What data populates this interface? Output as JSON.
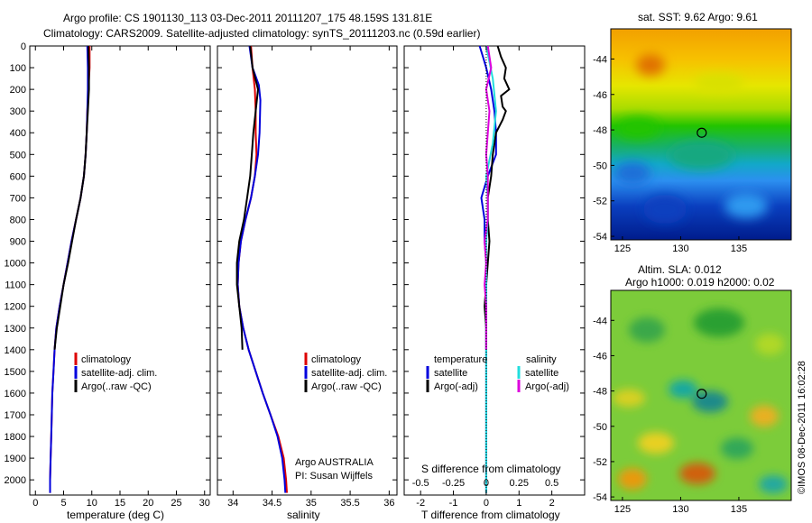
{
  "header": {
    "line1": "Argo profile: CS 1901130_113 03-Dec-2011 20111207_175 48.159S 131.81E",
    "line2": "Climatology: CARS2009. Satellite-adjusted climatology: synTS_20111203.nc (0.59d earlier)"
  },
  "colors": {
    "climatology": "#dd0000",
    "satellite_temp": "#0000dd",
    "argo_temp": "#000000",
    "satellite_sal": "#22dddd",
    "argo_sal": "#dd00dd"
  },
  "chart_data": [
    {
      "id": "temperature",
      "type": "line",
      "xlabel": "temperature (deg C)",
      "xlim": [
        -1,
        31
      ],
      "xticks": [
        "0",
        "5",
        "10",
        "15",
        "20",
        "25",
        "30"
      ],
      "ylim": [
        0,
        2070
      ],
      "yticks": [
        "0",
        "100",
        "200",
        "300",
        "400",
        "500",
        "600",
        "700",
        "800",
        "900",
        "1000",
        "1100",
        "1200",
        "1300",
        "1400",
        "1500",
        "1600",
        "1700",
        "1800",
        "1900",
        "2000"
      ],
      "legend": [
        "climatology",
        "satellite-adj. clim.",
        "Argo(..raw -QC)"
      ],
      "series": [
        {
          "name": "climatology",
          "color": "#dd0000",
          "points": [
            [
              9.6,
              0
            ],
            [
              9.6,
              100
            ],
            [
              9.4,
              200
            ],
            [
              9.2,
              300
            ],
            [
              9.1,
              400
            ],
            [
              8.9,
              500
            ],
            [
              8.6,
              600
            ],
            [
              8.0,
              700
            ],
            [
              7.2,
              800
            ],
            [
              6.4,
              900
            ],
            [
              5.7,
              1000
            ],
            [
              5.0,
              1100
            ],
            [
              4.3,
              1200
            ],
            [
              3.7,
              1300
            ],
            [
              3.4,
              1400
            ],
            [
              3.2,
              1500
            ],
            [
              3.0,
              1600
            ],
            [
              2.9,
              1700
            ],
            [
              2.8,
              1800
            ],
            [
              2.7,
              1900
            ],
            [
              2.6,
              2000
            ],
            [
              2.6,
              2060
            ]
          ]
        },
        {
          "name": "satellite-adj. clim.",
          "color": "#0000dd",
          "points": [
            [
              9.2,
              0
            ],
            [
              9.3,
              100
            ],
            [
              9.3,
              200
            ],
            [
              9.2,
              300
            ],
            [
              9.1,
              400
            ],
            [
              8.9,
              500
            ],
            [
              8.6,
              600
            ],
            [
              8.0,
              700
            ],
            [
              7.2,
              800
            ],
            [
              6.4,
              900
            ],
            [
              5.7,
              1000
            ],
            [
              5.0,
              1100
            ],
            [
              4.3,
              1200
            ],
            [
              3.7,
              1300
            ],
            [
              3.4,
              1400
            ],
            [
              3.2,
              1500
            ],
            [
              3.0,
              1600
            ],
            [
              2.9,
              1700
            ],
            [
              2.8,
              1800
            ],
            [
              2.7,
              1900
            ],
            [
              2.6,
              2000
            ],
            [
              2.6,
              2060
            ]
          ]
        },
        {
          "name": "Argo(..raw -QC)",
          "color": "#000000",
          "points": [
            [
              9.4,
              0
            ],
            [
              9.5,
              100
            ],
            [
              9.5,
              200
            ],
            [
              9.3,
              300
            ],
            [
              9.1,
              400
            ],
            [
              8.9,
              500
            ],
            [
              8.6,
              600
            ],
            [
              8.0,
              700
            ],
            [
              7.2,
              800
            ],
            [
              6.5,
              900
            ],
            [
              5.8,
              1000
            ],
            [
              5.0,
              1100
            ],
            [
              4.4,
              1200
            ],
            [
              3.8,
              1300
            ],
            [
              3.4,
              1400
            ]
          ]
        }
      ]
    },
    {
      "id": "salinity",
      "type": "line",
      "xlabel": "salinity",
      "xlim": [
        33.8,
        36.1
      ],
      "xticks": [
        "34",
        "34.5",
        "35",
        "35.5",
        "36"
      ],
      "ylim": [
        0,
        2070
      ],
      "legend": [
        "climatology",
        "satellite-adj. clim.",
        "Argo(..raw -QC)"
      ],
      "annotation": [
        "Argo AUSTRALIA",
        "PI: Susan Wijffels"
      ],
      "series": [
        {
          "name": "climatology",
          "color": "#dd0000",
          "points": [
            [
              34.23,
              0
            ],
            [
              34.25,
              100
            ],
            [
              34.28,
              200
            ],
            [
              34.29,
              300
            ],
            [
              34.29,
              400
            ],
            [
              34.3,
              500
            ],
            [
              34.28,
              600
            ],
            [
              34.23,
              700
            ],
            [
              34.16,
              800
            ],
            [
              34.1,
              900
            ],
            [
              34.07,
              1000
            ],
            [
              34.06,
              1100
            ],
            [
              34.08,
              1200
            ],
            [
              34.13,
              1300
            ],
            [
              34.2,
              1400
            ],
            [
              34.29,
              1500
            ],
            [
              34.38,
              1600
            ],
            [
              34.48,
              1700
            ],
            [
              34.58,
              1800
            ],
            [
              34.65,
              1900
            ],
            [
              34.68,
              2000
            ],
            [
              34.69,
              2060
            ]
          ]
        },
        {
          "name": "satellite-adj. clim.",
          "color": "#0000dd",
          "points": [
            [
              34.21,
              0
            ],
            [
              34.25,
              100
            ],
            [
              34.33,
              180
            ],
            [
              34.35,
              250
            ],
            [
              34.34,
              400
            ],
            [
              34.32,
              500
            ],
            [
              34.28,
              600
            ],
            [
              34.23,
              700
            ],
            [
              34.16,
              800
            ],
            [
              34.1,
              900
            ],
            [
              34.07,
              1000
            ],
            [
              34.06,
              1100
            ],
            [
              34.08,
              1200
            ],
            [
              34.13,
              1300
            ],
            [
              34.2,
              1400
            ],
            [
              34.29,
              1500
            ],
            [
              34.38,
              1600
            ],
            [
              34.48,
              1700
            ],
            [
              34.57,
              1800
            ],
            [
              34.63,
              1900
            ],
            [
              34.66,
              2000
            ],
            [
              34.67,
              2060
            ]
          ]
        },
        {
          "name": "Argo(..raw -QC)",
          "color": "#000000",
          "points": [
            [
              34.22,
              0
            ],
            [
              34.25,
              100
            ],
            [
              34.32,
              200
            ],
            [
              34.29,
              300
            ],
            [
              34.26,
              400
            ],
            [
              34.24,
              500
            ],
            [
              34.22,
              600
            ],
            [
              34.18,
              700
            ],
            [
              34.14,
              800
            ],
            [
              34.08,
              900
            ],
            [
              34.05,
              1000
            ],
            [
              34.05,
              1100
            ],
            [
              34.08,
              1200
            ],
            [
              34.11,
              1300
            ],
            [
              34.12,
              1400
            ]
          ]
        }
      ]
    },
    {
      "id": "difference",
      "type": "line",
      "xlabel": "T difference from climatology",
      "xlabel_top": "S difference from climatology",
      "xlim": [
        -2.5,
        3.0
      ],
      "xticks": [
        "-2",
        "-1",
        "0",
        "1",
        "2"
      ],
      "xticks_top": [
        "-0.5",
        "-0.25",
        "0",
        "0.25",
        "0.5"
      ],
      "ylim": [
        0,
        2070
      ],
      "legend_headers": [
        "temperature",
        "salinity"
      ],
      "legend_temperature": [
        "satellite",
        "Argo(-adj)"
      ],
      "legend_salinity": [
        "satellite",
        "Argo(-adj)"
      ],
      "series": [
        {
          "name": "temperature satellite",
          "color": "#0000dd",
          "points": [
            [
              -0.2,
              0
            ],
            [
              -0.1,
              50
            ],
            [
              0.0,
              100
            ],
            [
              0.15,
              200
            ],
            [
              0.25,
              300
            ],
            [
              0.3,
              400
            ],
            [
              0.3,
              500
            ],
            [
              0.05,
              600
            ],
            [
              -0.15,
              700
            ],
            [
              -0.05,
              800
            ],
            [
              -0.05,
              900
            ],
            [
              0.0,
              1000
            ],
            [
              0.0,
              1100
            ],
            [
              0.0,
              1300
            ],
            [
              0.0,
              2060
            ]
          ]
        },
        {
          "name": "temperature Argo(-adj)",
          "color": "#000000",
          "points": [
            [
              0.35,
              0
            ],
            [
              0.45,
              50
            ],
            [
              0.6,
              100
            ],
            [
              0.55,
              150
            ],
            [
              0.7,
              200
            ],
            [
              0.45,
              230
            ],
            [
              0.5,
              280
            ],
            [
              0.6,
              300
            ],
            [
              0.5,
              340
            ],
            [
              0.3,
              400
            ],
            [
              0.2,
              500
            ],
            [
              0.15,
              600
            ],
            [
              0.05,
              700
            ],
            [
              0.05,
              800
            ],
            [
              0.1,
              900
            ],
            [
              0.05,
              1000
            ],
            [
              0.0,
              1100
            ],
            [
              -0.05,
              1200
            ],
            [
              0.0,
              1300
            ],
            [
              0.0,
              1400
            ]
          ]
        },
        {
          "name": "salinity satellite",
          "color": "#22dddd",
          "points": [
            [
              0.0,
              0
            ],
            [
              0.2,
              150
            ],
            [
              0.3,
              300
            ],
            [
              0.2,
              450
            ],
            [
              0.0,
              600
            ],
            [
              0.05,
              700
            ],
            [
              0.05,
              800
            ],
            [
              0.0,
              900
            ],
            [
              0.0,
              1100
            ],
            [
              0.0,
              2060
            ]
          ]
        },
        {
          "name": "salinity Argo(-adj)",
          "color": "#dd00dd",
          "points": [
            [
              0.05,
              0
            ],
            [
              0.15,
              100
            ],
            [
              0.0,
              200
            ],
            [
              0.1,
              300
            ],
            [
              0.05,
              400
            ],
            [
              0.0,
              500
            ],
            [
              0.05,
              600
            ],
            [
              0.05,
              800
            ],
            [
              -0.05,
              900
            ],
            [
              0.0,
              1000
            ],
            [
              -0.05,
              1100
            ],
            [
              0.0,
              1200
            ],
            [
              0.0,
              1400
            ]
          ]
        }
      ]
    },
    {
      "id": "sst_map",
      "type": "heatmap",
      "title": "sat. SST: 9.62 Argo: 9.61",
      "xticks": [
        "125",
        "130",
        "135"
      ],
      "yticks": [
        "-44",
        "-46",
        "-48",
        "-50",
        "-52",
        "-54"
      ],
      "lon_range": [
        124,
        139.5
      ],
      "lat_range": [
        -54.2,
        -42.3
      ],
      "marker": {
        "lon": 131.81,
        "lat": -48.159
      }
    },
    {
      "id": "sla_map",
      "type": "heatmap",
      "title_line1": "Altim. SLA: 0.012",
      "title_line2": "Argo h1000: 0.019 h2000: 0.02",
      "xticks": [
        "125",
        "130",
        "135"
      ],
      "yticks": [
        "-44",
        "-46",
        "-48",
        "-50",
        "-52",
        "-54"
      ],
      "lon_range": [
        124,
        139.5
      ],
      "lat_range": [
        -54.2,
        -42.3
      ],
      "marker": {
        "lon": 131.81,
        "lat": -48.159
      }
    }
  ],
  "watermark": "©IMOS 08-Dec-2011 16:02:28"
}
